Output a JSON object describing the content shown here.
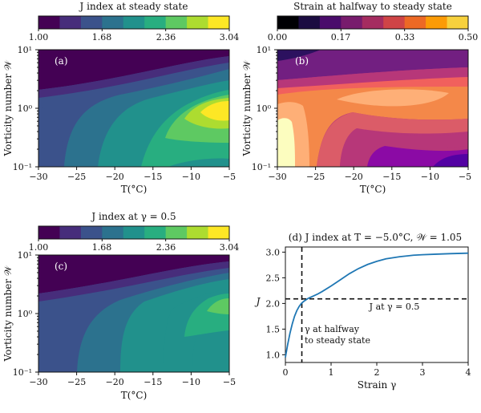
{
  "colors": {
    "viridis": [
      "#440154",
      "#472d7b",
      "#3b528b",
      "#2c728e",
      "#21918c",
      "#28ae80",
      "#5ec962",
      "#addc30",
      "#fde725"
    ],
    "magma": [
      "#000004",
      "#2c115f",
      "#721f81",
      "#b73779",
      "#f1605d",
      "#feaf77",
      "#fcfdbf"
    ],
    "plasma_levels": [
      "#0d0887",
      "#5302a3",
      "#8b0aa5",
      "#b83289",
      "#db5c68",
      "#f48849",
      "#febd2a",
      "#f0f921"
    ],
    "line": "#1f77b4"
  },
  "chart_data": [
    {
      "id": "a",
      "type": "heatmap",
      "panel_label": "(a)",
      "colorbar_title": "J index at steady state",
      "colorbar_ticks": [
        "1.00",
        "1.68",
        "2.36",
        "3.04"
      ],
      "colorbar_range": [
        1.0,
        3.04
      ],
      "colorbar_levels": 9,
      "colormap": "viridis",
      "xlabel": "T(°C)",
      "ylabel": "Vorticity number 𝒲",
      "x_ticks": [
        "−30",
        "−25",
        "−20",
        "−15",
        "−10",
        "−5"
      ],
      "x_range": [
        -30,
        -5
      ],
      "y_ticks": [
        "10⁻¹",
        "10⁰",
        "10¹"
      ],
      "y_range": [
        0.1,
        10
      ],
      "y_scale": "log"
    },
    {
      "id": "b",
      "type": "heatmap",
      "panel_label": "(b)",
      "colorbar_title": "Strain at halfway to steady state",
      "colorbar_ticks": [
        "0.00",
        "0.17",
        "0.33",
        "0.50"
      ],
      "colorbar_range": [
        0.0,
        0.5
      ],
      "colorbar_levels": 9,
      "colormap": "inferno",
      "xlabel": "T(°C)",
      "ylabel": "Vorticity number 𝒲",
      "x_ticks": [
        "−30",
        "−25",
        "−20",
        "−15",
        "−10",
        "−5"
      ],
      "x_range": [
        -30,
        -5
      ],
      "y_ticks": [
        "10⁻¹",
        "10⁰",
        "10¹"
      ],
      "y_range": [
        0.1,
        10
      ],
      "y_scale": "log"
    },
    {
      "id": "c",
      "type": "heatmap",
      "panel_label": "(c)",
      "colorbar_title": "J index at γ = 0.5",
      "colorbar_ticks": [
        "1.00",
        "1.68",
        "2.36",
        "3.04"
      ],
      "colorbar_range": [
        1.0,
        3.04
      ],
      "colorbar_levels": 9,
      "colormap": "viridis",
      "xlabel": "T(°C)",
      "ylabel": "Vorticity number 𝒲",
      "x_ticks": [
        "−30",
        "−25",
        "−20",
        "−15",
        "−10",
        "−5"
      ],
      "x_range": [
        -30,
        -5
      ],
      "y_ticks": [
        "10⁻¹",
        "10⁰",
        "10¹"
      ],
      "y_range": [
        0.1,
        10
      ],
      "y_scale": "log"
    },
    {
      "id": "d",
      "type": "line",
      "title": "(d) J index at T = −5.0°C, 𝒲 = 1.05",
      "xlabel": "Strain γ",
      "ylabel": "J",
      "xlim": [
        0,
        4
      ],
      "ylim": [
        0.85,
        3.1
      ],
      "x_ticks": [
        0,
        1,
        2,
        3,
        4
      ],
      "x_tick_labels": [
        "0",
        "1",
        "2",
        "3",
        "4"
      ],
      "y_ticks": [
        1.0,
        1.5,
        2.0,
        2.5,
        3.0
      ],
      "y_tick_labels": [
        "1.0",
        "1.5",
        "2.0",
        "2.5",
        "3.0"
      ],
      "series": [
        {
          "x": [
            0,
            0.05,
            0.1,
            0.15,
            0.2,
            0.25,
            0.3,
            0.35,
            0.4,
            0.45,
            0.5,
            0.6,
            0.7,
            0.8,
            1.0,
            1.2,
            1.4,
            1.6,
            1.8,
            2.0,
            2.2,
            2.5,
            2.8,
            3.0,
            3.3,
            3.6,
            4.0
          ],
          "y": [
            0.95,
            1.2,
            1.42,
            1.6,
            1.75,
            1.86,
            1.94,
            2.0,
            2.04,
            2.07,
            2.1,
            2.14,
            2.18,
            2.23,
            2.34,
            2.46,
            2.58,
            2.68,
            2.76,
            2.82,
            2.87,
            2.91,
            2.94,
            2.95,
            2.96,
            2.97,
            2.98
          ]
        }
      ],
      "hline": {
        "y": 2.09,
        "label": "J at γ = 0.5"
      },
      "vline": {
        "x": 0.36,
        "label_lines": [
          "γ at halfway",
          "to steady state"
        ]
      }
    }
  ]
}
